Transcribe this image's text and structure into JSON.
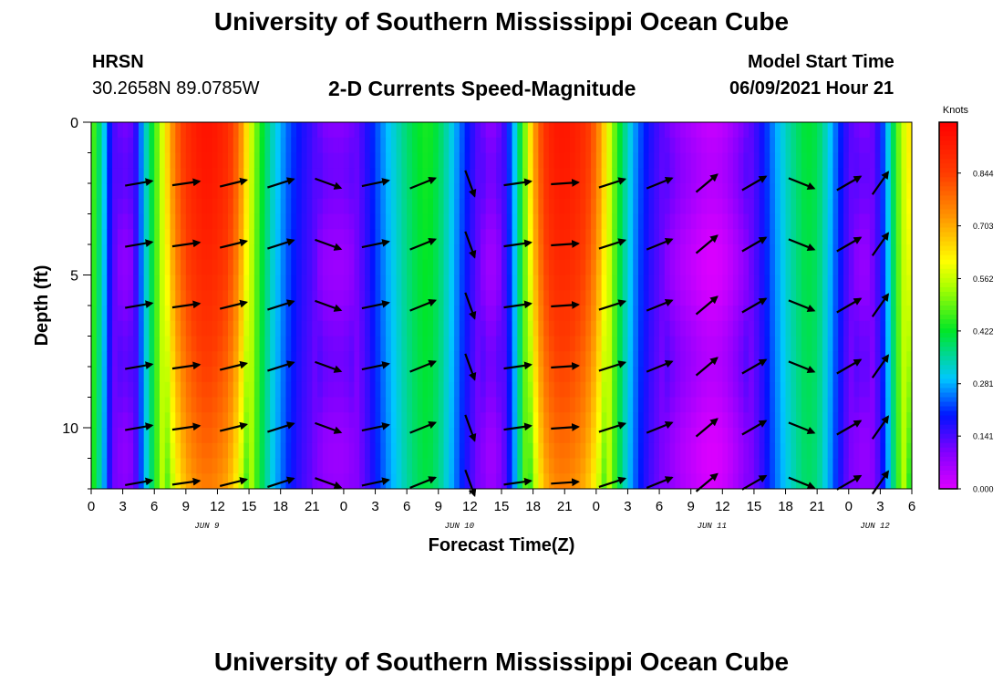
{
  "header": {
    "title_top": "University of Southern Mississippi Ocean Cube",
    "station": "HRSN",
    "coords": "30.2658N  89.0785W",
    "subtitle": "2-D Currents Speed-Magnitude",
    "model_start_label": "Model Start Time",
    "model_start_value": "06/09/2021 Hour 21",
    "title_bottom": "University of Southern Mississippi Ocean Cube"
  },
  "chart_data": {
    "type": "heatmap",
    "title": "2-D Currents Speed-Magnitude",
    "xlabel": "Forecast Time(Z)",
    "ylabel": "Depth (ft)",
    "x_range_hours": [
      0,
      78
    ],
    "y_range_ft": [
      0,
      12
    ],
    "y_ticks": [
      0,
      5,
      10
    ],
    "x_tick_labels": [
      "0",
      "3",
      "6",
      "9",
      "12",
      "15",
      "18",
      "21",
      "0",
      "3",
      "6",
      "9",
      "12",
      "15",
      "18",
      "21",
      "0",
      "3",
      "6",
      "9",
      "12",
      "15",
      "18",
      "21",
      "0",
      "3",
      "6"
    ],
    "day_labels": [
      {
        "label": "JUN 9",
        "hour": 11
      },
      {
        "label": "JUN 10",
        "hour": 35
      },
      {
        "label": "JUN 11",
        "hour": 59
      },
      {
        "label": "JUN 12",
        "hour": 74.5
      }
    ],
    "colorbar": {
      "unit": "Knots",
      "min": 0.0,
      "max": 0.98,
      "tick_labels": [
        "0.844",
        "0.703",
        "0.562",
        "0.422",
        "0.281",
        "0.141",
        "0.000"
      ],
      "tick_values": [
        0.844,
        0.703,
        0.562,
        0.422,
        0.281,
        0.141,
        0.0
      ]
    },
    "speed_profile_knots": [
      {
        "hour": 0,
        "speed": 0.5
      },
      {
        "hour": 1,
        "speed": 0.35
      },
      {
        "hour": 2,
        "speed": 0.15
      },
      {
        "hour": 3,
        "speed": 0.1
      },
      {
        "hour": 4,
        "speed": 0.12
      },
      {
        "hour": 5,
        "speed": 0.3
      },
      {
        "hour": 6,
        "speed": 0.45
      },
      {
        "hour": 7,
        "speed": 0.62
      },
      {
        "hour": 8,
        "speed": 0.78
      },
      {
        "hour": 9,
        "speed": 0.87
      },
      {
        "hour": 10,
        "speed": 0.92
      },
      {
        "hour": 11,
        "speed": 0.94
      },
      {
        "hour": 12,
        "speed": 0.92
      },
      {
        "hour": 13,
        "speed": 0.88
      },
      {
        "hour": 14,
        "speed": 0.78
      },
      {
        "hour": 15,
        "speed": 0.6
      },
      {
        "hour": 16,
        "speed": 0.45
      },
      {
        "hour": 17,
        "speed": 0.35
      },
      {
        "hour": 18,
        "speed": 0.28
      },
      {
        "hour": 19,
        "speed": 0.22
      },
      {
        "hour": 20,
        "speed": 0.18
      },
      {
        "hour": 21,
        "speed": 0.15
      },
      {
        "hour": 22,
        "speed": 0.1
      },
      {
        "hour": 23,
        "speed": 0.09
      },
      {
        "hour": 24,
        "speed": 0.09
      },
      {
        "hour": 25,
        "speed": 0.11
      },
      {
        "hour": 26,
        "speed": 0.16
      },
      {
        "hour": 27,
        "speed": 0.22
      },
      {
        "hour": 28,
        "speed": 0.28
      },
      {
        "hour": 29,
        "speed": 0.33
      },
      {
        "hour": 30,
        "speed": 0.38
      },
      {
        "hour": 31,
        "speed": 0.42
      },
      {
        "hour": 32,
        "speed": 0.44
      },
      {
        "hour": 33,
        "speed": 0.4
      },
      {
        "hour": 34,
        "speed": 0.33
      },
      {
        "hour": 35,
        "speed": 0.25
      },
      {
        "hour": 36,
        "speed": 0.18
      },
      {
        "hour": 37,
        "speed": 0.12
      },
      {
        "hour": 38,
        "speed": 0.08
      },
      {
        "hour": 39,
        "speed": 0.12
      },
      {
        "hour": 40,
        "speed": 0.25
      },
      {
        "hour": 41,
        "speed": 0.45
      },
      {
        "hour": 42,
        "speed": 0.7
      },
      {
        "hour": 43,
        "speed": 0.86
      },
      {
        "hour": 44,
        "speed": 0.92
      },
      {
        "hour": 45,
        "speed": 0.93
      },
      {
        "hour": 46,
        "speed": 0.91
      },
      {
        "hour": 47,
        "speed": 0.87
      },
      {
        "hour": 48,
        "speed": 0.78
      },
      {
        "hour": 49,
        "speed": 0.62
      },
      {
        "hour": 50,
        "speed": 0.45
      },
      {
        "hour": 51,
        "speed": 0.33
      },
      {
        "hour": 52,
        "speed": 0.24
      },
      {
        "hour": 53,
        "speed": 0.18
      },
      {
        "hour": 54,
        "speed": 0.14
      },
      {
        "hour": 55,
        "speed": 0.1
      },
      {
        "hour": 56,
        "speed": 0.07
      },
      {
        "hour": 57,
        "speed": 0.05
      },
      {
        "hour": 58,
        "speed": 0.03
      },
      {
        "hour": 59,
        "speed": 0.02
      },
      {
        "hour": 60,
        "speed": 0.03
      },
      {
        "hour": 61,
        "speed": 0.06
      },
      {
        "hour": 62,
        "speed": 0.1
      },
      {
        "hour": 63,
        "speed": 0.14
      },
      {
        "hour": 64,
        "speed": 0.2
      },
      {
        "hour": 65,
        "speed": 0.27
      },
      {
        "hour": 66,
        "speed": 0.33
      },
      {
        "hour": 67,
        "speed": 0.38
      },
      {
        "hour": 68,
        "speed": 0.42
      },
      {
        "hour": 69,
        "speed": 0.4
      },
      {
        "hour": 70,
        "speed": 0.32
      },
      {
        "hour": 71,
        "speed": 0.22
      },
      {
        "hour": 72,
        "speed": 0.14
      },
      {
        "hour": 73,
        "speed": 0.1
      },
      {
        "hour": 74,
        "speed": 0.1
      },
      {
        "hour": 75,
        "speed": 0.18
      },
      {
        "hour": 76,
        "speed": 0.35
      },
      {
        "hour": 77,
        "speed": 0.55
      },
      {
        "hour": 78,
        "speed": 0.65
      }
    ],
    "vector_times_hours": [
      4.5,
      9,
      13.5,
      18,
      22.5,
      27,
      31.5,
      36,
      40.5,
      45,
      49.5,
      54,
      58.5,
      63,
      67.5,
      72,
      75
    ],
    "vector_depths_ft": [
      2,
      4,
      6,
      8,
      10,
      11.8
    ],
    "vector_directions_deg": [
      10,
      8,
      14,
      18,
      -20,
      12,
      22,
      -70,
      8,
      4,
      18,
      22,
      40,
      30,
      -22,
      30,
      55
    ]
  }
}
